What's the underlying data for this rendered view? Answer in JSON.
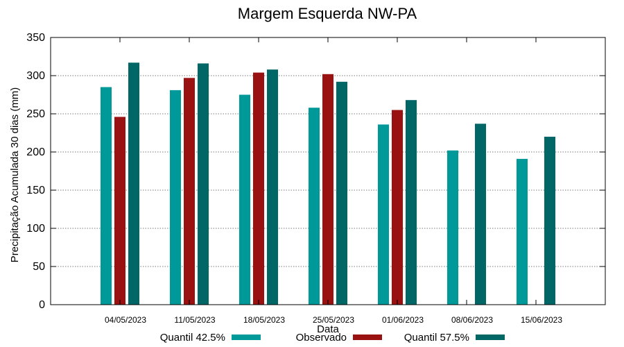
{
  "chart_data": {
    "type": "bar",
    "title": "Margem Esquerda NW-PA",
    "xlabel": "Data",
    "ylabel": "Precipitação Acumulada 30 dias (mm)",
    "ylim": [
      0,
      350
    ],
    "yticks": [
      0,
      50,
      100,
      150,
      200,
      250,
      300,
      350
    ],
    "grid": true,
    "legend_position": "bottom",
    "categories": [
      "04/05/2023",
      "11/05/2023",
      "18/05/2023",
      "25/05/2023",
      "01/06/2023",
      "08/06/2023",
      "15/06/2023"
    ],
    "series": [
      {
        "name": "Quantil 42.5%",
        "color": "#009999",
        "values": [
          285,
          281,
          275,
          258,
          236,
          202,
          191
        ]
      },
      {
        "name": "Observado",
        "color": "#991111",
        "values": [
          246,
          297,
          304,
          302,
          255,
          null,
          null
        ]
      },
      {
        "name": "Quantil 57.5%",
        "color": "#006666",
        "values": [
          317,
          316,
          308,
          292,
          268,
          237,
          220
        ]
      }
    ]
  }
}
